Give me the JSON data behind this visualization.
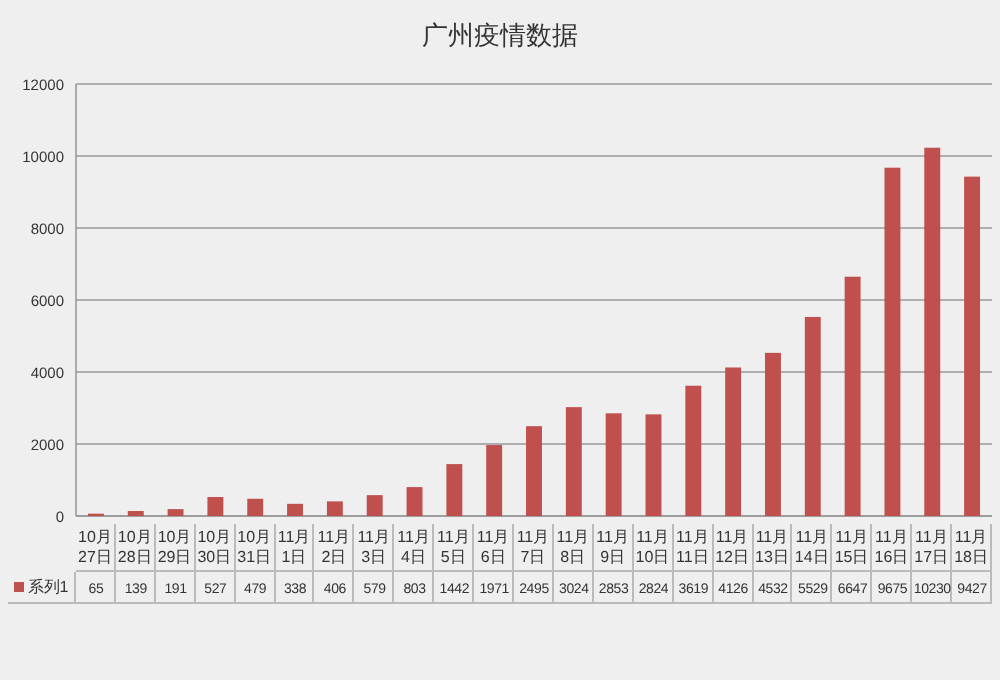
{
  "chart_data": {
    "type": "bar",
    "title": "广州疫情数据",
    "categories": [
      "10月27日",
      "10月28日",
      "10月29日",
      "10月30日",
      "10月31日",
      "11月1日",
      "11月2日",
      "11月3日",
      "11月4日",
      "11月5日",
      "11月6日",
      "11月7日",
      "11月8日",
      "11月9日",
      "11月10日",
      "11月11日",
      "11月12日",
      "11月13日",
      "11月14日",
      "11月15日",
      "11月16日",
      "11月17日",
      "11月18日"
    ],
    "series": [
      {
        "name": "系列1",
        "color": "#c0504d",
        "values": [
          65,
          139,
          191,
          527,
          479,
          338,
          406,
          579,
          803,
          1442,
          1971,
          2495,
          3024,
          2853,
          2824,
          3619,
          4126,
          4532,
          5529,
          6647,
          9675,
          10230,
          9427
        ]
      }
    ],
    "ylim": [
      0,
      12000
    ],
    "yticks": [
      0,
      2000,
      4000,
      6000,
      8000,
      10000,
      12000
    ],
    "grid": "y",
    "legend": "bottom",
    "data_labels": true
  }
}
